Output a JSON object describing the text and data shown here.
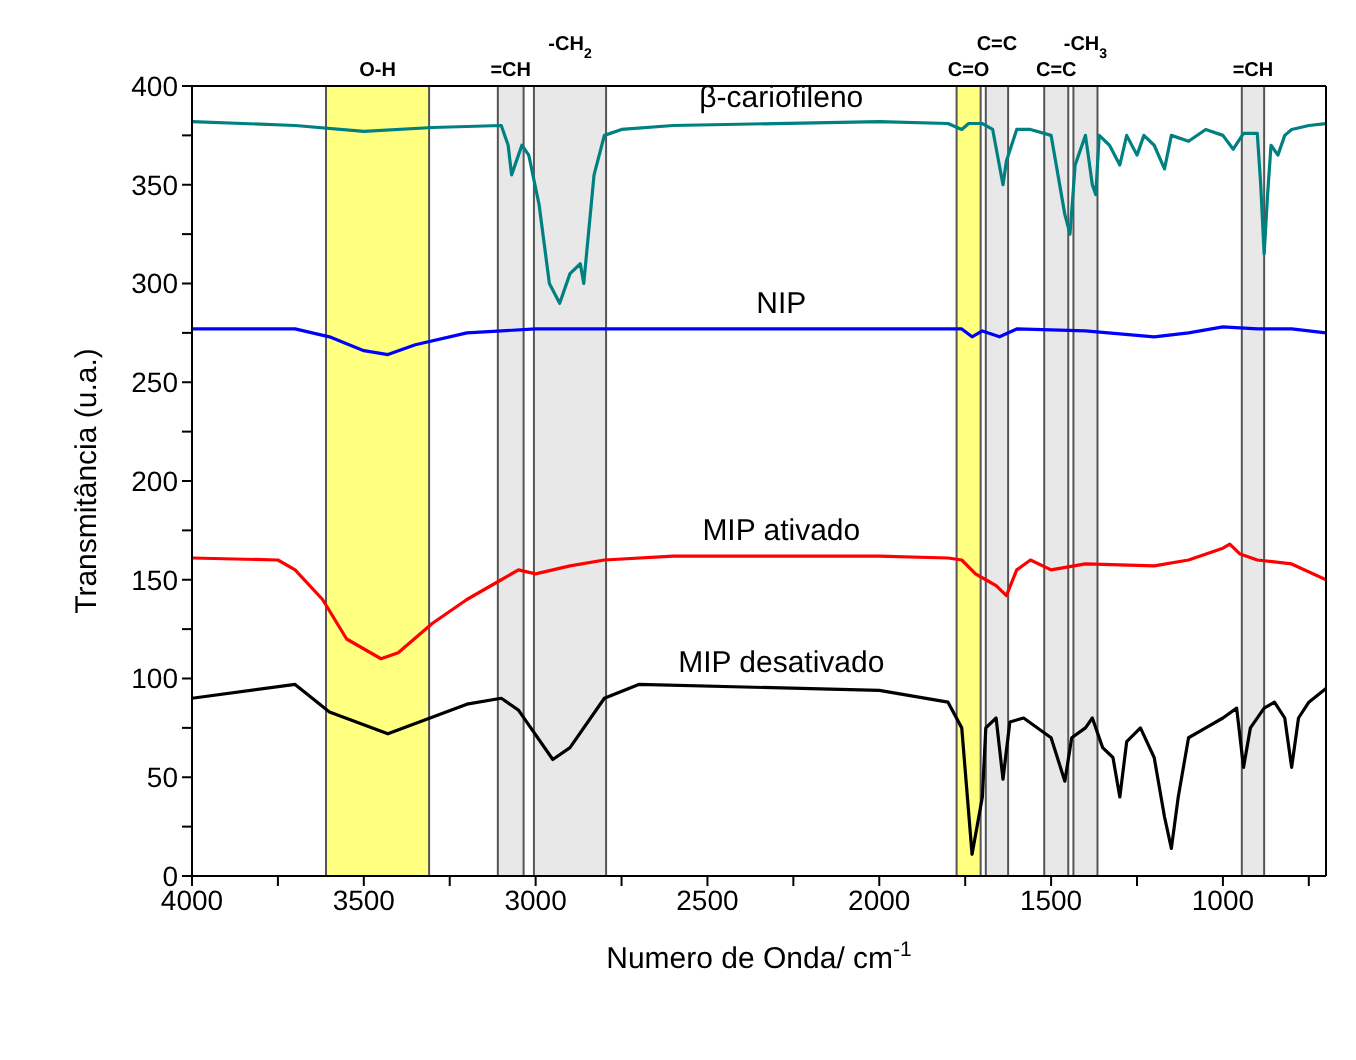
{
  "chart_data": {
    "type": "line",
    "xlabel": "Numero de Onda/ cm$^{-1}$",
    "ylabel": "Transmitância (u.a.)",
    "xlim": [
      4000,
      700
    ],
    "xticks": [
      4000,
      {
        "value": 3750,
        "label": null
      },
      3500,
      {
        "value": 3250,
        "label": null
      },
      3000,
      {
        "value": 2750,
        "label": null
      },
      2500,
      {
        "value": 2250,
        "label": null
      },
      2000,
      {
        "value": 1750,
        "label": null
      },
      1500,
      {
        "value": 1250,
        "label": null
      },
      1000,
      {
        "value": 750,
        "label": null
      }
    ],
    "ylim": [
      0,
      400
    ],
    "yticks": [
      0,
      {
        "value": 25,
        "label": null
      },
      50,
      {
        "value": 75,
        "label": null
      },
      100,
      {
        "value": 125,
        "label": null
      },
      150,
      {
        "value": 175,
        "label": null
      },
      200,
      {
        "value": 225,
        "label": null
      },
      250,
      {
        "value": 275,
        "label": null
      },
      300,
      {
        "value": 325,
        "label": null
      },
      350,
      {
        "value": 375,
        "label": null
      },
      400
    ],
    "grid": false,
    "legend": false,
    "marker": "none",
    "line_style": "solid",
    "series": [
      {
        "name": "β-cariofileno",
        "color": "#008080",
        "x": [
          4000,
          3700,
          3500,
          3300,
          3100,
          3080,
          3070,
          3050,
          3040,
          3020,
          2990,
          2960,
          2930,
          2900,
          2870,
          2860,
          2830,
          2800,
          2750,
          2600,
          2000,
          1800,
          1760,
          1740,
          1700,
          1670,
          1640,
          1630,
          1600,
          1560,
          1500,
          1460,
          1445,
          1430,
          1400,
          1380,
          1370,
          1360,
          1330,
          1300,
          1280,
          1250,
          1230,
          1200,
          1170,
          1150,
          1100,
          1050,
          1000,
          970,
          940,
          900,
          890,
          880,
          870,
          860,
          840,
          820,
          800,
          750,
          700
        ],
        "values": [
          382,
          380,
          377,
          379,
          380,
          370,
          355,
          365,
          370,
          365,
          340,
          300,
          290,
          305,
          310,
          300,
          355,
          375,
          378,
          380,
          382,
          381,
          378,
          381,
          381,
          378,
          350,
          362,
          378,
          378,
          375,
          335,
          325,
          360,
          375,
          350,
          345,
          375,
          370,
          360,
          375,
          365,
          375,
          370,
          358,
          375,
          372,
          378,
          375,
          368,
          376,
          376,
          350,
          315,
          345,
          370,
          365,
          375,
          378,
          380,
          381
        ]
      },
      {
        "name": "NIP",
        "color": "#0000ff",
        "x": [
          4000,
          3700,
          3600,
          3500,
          3430,
          3350,
          3200,
          3000,
          2000,
          1760,
          1730,
          1700,
          1650,
          1600,
          1400,
          1200,
          1100,
          1000,
          900,
          800,
          700
        ],
        "values": [
          277,
          277,
          273,
          266,
          264,
          269,
          275,
          277,
          277,
          277,
          273,
          276,
          273,
          277,
          276,
          273,
          275,
          278,
          277,
          277,
          275
        ]
      },
      {
        "name": "MIP ativado",
        "color": "#ff0000",
        "x": [
          4000,
          3750,
          3700,
          3620,
          3550,
          3450,
          3400,
          3300,
          3200,
          3100,
          3050,
          3000,
          2900,
          2800,
          2600,
          2000,
          1800,
          1760,
          1720,
          1690,
          1660,
          1630,
          1600,
          1560,
          1500,
          1400,
          1200,
          1100,
          1000,
          980,
          950,
          900,
          800,
          700
        ],
        "values": [
          161,
          160,
          155,
          140,
          120,
          110,
          113,
          128,
          140,
          150,
          155,
          153,
          157,
          160,
          162,
          162,
          161,
          160,
          153,
          150,
          147,
          142,
          155,
          160,
          155,
          158,
          157,
          160,
          166,
          168,
          163,
          160,
          158,
          150
        ]
      },
      {
        "name": "MIP desativado",
        "color": "#000000",
        "x": [
          4000,
          3700,
          3600,
          3430,
          3200,
          3100,
          3050,
          2950,
          2900,
          2800,
          2700,
          2000,
          1800,
          1760,
          1730,
          1700,
          1690,
          1660,
          1640,
          1620,
          1580,
          1500,
          1460,
          1440,
          1400,
          1380,
          1350,
          1320,
          1300,
          1280,
          1240,
          1200,
          1170,
          1150,
          1130,
          1100,
          1050,
          1000,
          960,
          940,
          920,
          880,
          850,
          820,
          800,
          780,
          750,
          700
        ],
        "values": [
          90,
          97,
          83,
          72,
          87,
          90,
          84,
          59,
          65,
          90,
          97,
          94,
          88,
          75,
          11,
          40,
          75,
          80,
          49,
          78,
          80,
          70,
          48,
          70,
          75,
          80,
          65,
          60,
          40,
          68,
          75,
          60,
          30,
          14,
          40,
          70,
          75,
          80,
          85,
          55,
          75,
          85,
          88,
          80,
          55,
          80,
          88,
          95
        ]
      }
    ],
    "bands": [
      {
        "axis": "x",
        "from": 3610,
        "to": 3310,
        "label": "O-H",
        "color": "#ffff80"
      },
      {
        "axis": "x",
        "from": 3110,
        "to": 3035,
        "label": "=CH",
        "color": "#e8e8e8"
      },
      {
        "axis": "x",
        "from": 3005,
        "to": 2795,
        "label": "-CH$_{2}$",
        "color": "#e8e8e8"
      },
      {
        "axis": "x",
        "from": 1775,
        "to": 1705,
        "label": "C=O",
        "color": "#ffff80"
      },
      {
        "axis": "x",
        "from": 1690,
        "to": 1625,
        "label": "C=C",
        "color": "#e8e8e8"
      },
      {
        "axis": "x",
        "from": 1520,
        "to": 1450,
        "label": "C=C",
        "color": "#e8e8e8"
      },
      {
        "axis": "x",
        "from": 1435,
        "to": 1365,
        "label": "-CH$_{3}$",
        "color": "#e8e8e8"
      },
      {
        "axis": "x",
        "from": 945,
        "to": 880,
        "label": "=CH",
        "color": "#e8e8e8"
      }
    ]
  }
}
